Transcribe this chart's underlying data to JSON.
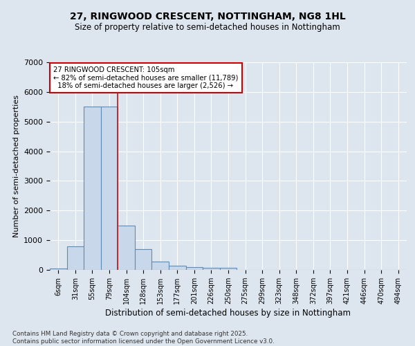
{
  "title1": "27, RINGWOOD CRESCENT, NOTTINGHAM, NG8 1HL",
  "title2": "Size of property relative to semi-detached houses in Nottingham",
  "xlabel": "Distribution of semi-detached houses by size in Nottingham",
  "ylabel": "Number of semi-detached properties",
  "categories": [
    "6sqm",
    "31sqm",
    "55sqm",
    "79sqm",
    "104sqm",
    "128sqm",
    "153sqm",
    "177sqm",
    "201sqm",
    "226sqm",
    "250sqm",
    "275sqm",
    "299sqm",
    "323sqm",
    "348sqm",
    "372sqm",
    "397sqm",
    "421sqm",
    "446sqm",
    "470sqm",
    "494sqm"
  ],
  "values": [
    50,
    800,
    5500,
    5500,
    1500,
    700,
    280,
    150,
    100,
    70,
    70,
    0,
    0,
    0,
    0,
    0,
    0,
    0,
    0,
    0,
    0
  ],
  "bar_color": "#c8d8ea",
  "bar_edge_color": "#5b8db8",
  "highlight_line_index": 4,
  "highlight_line_color": "#cc1111",
  "annotation_text": "27 RINGWOOD CRESCENT: 105sqm\n← 82% of semi-detached houses are smaller (11,789)\n  18% of semi-detached houses are larger (2,526) →",
  "annotation_box_color": "#ffffff",
  "annotation_box_edge": "#cc0000",
  "ylim": [
    0,
    7000
  ],
  "yticks": [
    0,
    1000,
    2000,
    3000,
    4000,
    5000,
    6000,
    7000
  ],
  "background_color": "#dde5ef",
  "grid_color": "#ffffff",
  "footnote": "Contains HM Land Registry data © Crown copyright and database right 2025.\nContains public sector information licensed under the Open Government Licence v3.0."
}
